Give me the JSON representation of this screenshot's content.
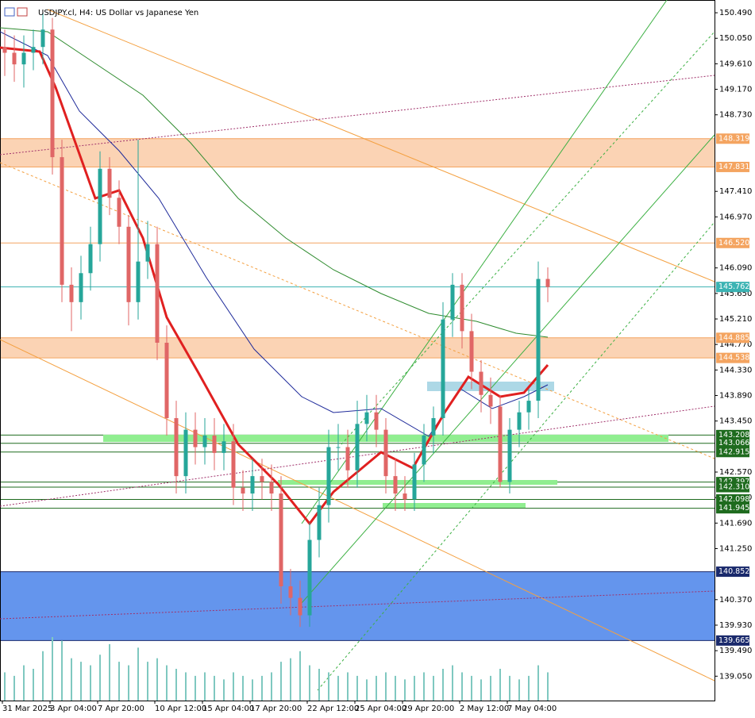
{
  "chart_data": {
    "type": "candlestick",
    "title": "USDJPY.cl, H4:  US Dollar vs Japanese Yen",
    "ylim": [
      138.63,
      150.71
    ],
    "yticks": [
      {
        "value": 150.49,
        "label": "150.490"
      },
      {
        "value": 150.05,
        "label": "150.050"
      },
      {
        "value": 149.61,
        "label": "149.610"
      },
      {
        "value": 149.17,
        "label": "149.170"
      },
      {
        "value": 148.73,
        "label": "148.730"
      },
      {
        "value": 147.41,
        "label": "147.410"
      },
      {
        "value": 146.97,
        "label": "146.970"
      },
      {
        "value": 146.09,
        "label": "146.090"
      },
      {
        "value": 145.65,
        "label": "145.650"
      },
      {
        "value": 145.21,
        "label": "145.210"
      },
      {
        "value": 144.77,
        "label": "144.770"
      },
      {
        "value": 144.33,
        "label": "144.330"
      },
      {
        "value": 143.89,
        "label": "143.890"
      },
      {
        "value": 143.45,
        "label": "143.450"
      },
      {
        "value": 142.57,
        "label": "142.570"
      },
      {
        "value": 142.13,
        "label": "142.130"
      },
      {
        "value": 141.69,
        "label": "141.690"
      },
      {
        "value": 141.25,
        "label": "141.250"
      },
      {
        "value": 140.37,
        "label": "140.370"
      },
      {
        "value": 139.93,
        "label": "139.930"
      },
      {
        "value": 139.49,
        "label": "139.490"
      },
      {
        "value": 139.05,
        "label": "139.050"
      }
    ],
    "categories": [
      "31 Mar 2025",
      null,
      null,
      null,
      null,
      "3 Apr 04:00",
      null,
      null,
      null,
      null,
      "7 Apr 20:00",
      null,
      null,
      null,
      null,
      null,
      "10 Apr 12:00",
      null,
      null,
      null,
      null,
      "15 Apr 04:00",
      null,
      null,
      null,
      null,
      "17 Apr 20:00",
      null,
      null,
      null,
      null,
      null,
      "22 Apr 12:00",
      null,
      null,
      null,
      null,
      "25 Apr 04:00",
      null,
      null,
      null,
      null,
      "29 Apr 20:00",
      null,
      null,
      null,
      null,
      null,
      "2 May 12:00",
      null,
      null,
      null,
      null,
      "7 May 04:00",
      null,
      null,
      null,
      null
    ],
    "open": [
      149.9,
      149.8,
      149.6,
      149.8,
      149.9,
      150.2,
      148.0,
      145.8,
      145.5,
      146.0,
      146.5,
      147.8,
      147.3,
      146.8,
      145.5,
      146.2,
      146.5,
      144.8,
      143.5,
      142.5,
      143.3,
      143.0,
      143.2,
      142.9,
      143.1,
      142.3,
      142.2,
      142.5,
      142.4,
      142.2,
      140.6,
      140.4,
      140.1,
      141.4,
      142.0,
      143.0,
      143.0,
      142.6,
      143.4,
      143.6,
      143.3,
      142.5,
      142.2,
      142.1,
      142.7,
      143.2,
      143.5,
      145.2,
      145.8,
      145.0,
      144.3,
      143.9,
      143.7,
      142.4,
      143.3,
      143.6,
      143.8,
      145.9
    ],
    "high": [
      150.2,
      150.1,
      150.1,
      150.2,
      150.5,
      150.4,
      148.3,
      146.1,
      146.3,
      146.8,
      148.1,
      148.0,
      147.6,
      147.0,
      148.3,
      146.9,
      146.8,
      145.1,
      143.8,
      143.6,
      143.6,
      143.5,
      143.5,
      143.4,
      143.4,
      142.6,
      142.8,
      142.8,
      142.7,
      142.5,
      140.9,
      140.7,
      141.7,
      142.3,
      143.3,
      143.4,
      143.3,
      143.8,
      143.9,
      143.9,
      143.5,
      142.8,
      142.5,
      142.9,
      143.4,
      143.7,
      145.5,
      146.0,
      146.0,
      145.3,
      144.5,
      144.2,
      143.9,
      143.5,
      143.8,
      144.0,
      146.2,
      146.1
    ],
    "low": [
      149.4,
      149.3,
      149.2,
      149.5,
      149.6,
      147.7,
      145.5,
      145.0,
      145.2,
      145.7,
      146.2,
      147.0,
      146.5,
      145.1,
      145.2,
      145.9,
      144.5,
      143.2,
      142.2,
      142.2,
      142.7,
      142.7,
      142.6,
      142.6,
      142.0,
      141.9,
      141.9,
      142.1,
      141.9,
      140.3,
      140.1,
      139.9,
      139.9,
      141.1,
      141.7,
      142.6,
      142.3,
      142.3,
      143.1,
      143.0,
      142.2,
      141.9,
      141.9,
      141.9,
      142.4,
      142.9,
      143.2,
      144.9,
      144.7,
      144.0,
      143.6,
      143.4,
      142.3,
      142.2,
      143.0,
      143.3,
      143.5,
      145.5
    ],
    "close": [
      149.8,
      149.6,
      149.8,
      149.9,
      150.2,
      148.0,
      145.8,
      145.5,
      146.0,
      146.5,
      147.8,
      147.3,
      146.8,
      145.5,
      146.2,
      146.5,
      144.8,
      143.5,
      142.5,
      143.3,
      143.0,
      143.2,
      142.9,
      143.1,
      142.3,
      142.2,
      142.5,
      142.4,
      142.2,
      140.6,
      140.4,
      140.1,
      141.4,
      142.0,
      143.0,
      143.0,
      142.6,
      143.4,
      143.6,
      143.3,
      142.5,
      142.2,
      142.1,
      142.7,
      143.2,
      143.5,
      145.2,
      145.8,
      145.0,
      144.3,
      143.9,
      143.7,
      142.4,
      143.3,
      143.6,
      143.8,
      145.9,
      145.76
    ],
    "volume": [
      40,
      35,
      50,
      45,
      70,
      90,
      85,
      60,
      55,
      50,
      65,
      80,
      55,
      50,
      75,
      55,
      60,
      50,
      45,
      40,
      35,
      40,
      35,
      30,
      40,
      35,
      30,
      35,
      40,
      55,
      60,
      70,
      50,
      45,
      40,
      35,
      40,
      35,
      30,
      35,
      40,
      35,
      30,
      35,
      40,
      35,
      45,
      50,
      40,
      35,
      30,
      35,
      45,
      35,
      30,
      35,
      50,
      40
    ],
    "up_color": "#26a69a",
    "down_color": "#e06666",
    "zones": [
      {
        "from": 148.319,
        "to": 147.831,
        "color": "#fbd3b4"
      },
      {
        "from": 144.885,
        "to": 144.538,
        "color": "#fbd3b4"
      },
      {
        "from": 140.852,
        "to": 139.665,
        "color": "#6495ed"
      }
    ],
    "levels": [
      {
        "value": 148.319,
        "label": "148.319",
        "color": "#f4a460"
      },
      {
        "value": 147.831,
        "label": "147.831",
        "color": "#f4a460"
      },
      {
        "value": 146.52,
        "label": "146.520",
        "color": "#f4a460"
      },
      {
        "value": 145.762,
        "label": "145.762",
        "color": "#3bb3b3"
      },
      {
        "value": 144.885,
        "label": "144.885",
        "color": "#f4a460"
      },
      {
        "value": 144.538,
        "label": "144.538",
        "color": "#f4a460"
      },
      {
        "value": 143.208,
        "label": "143.208",
        "color": "#1e6b1e"
      },
      {
        "value": 143.066,
        "label": "143.066",
        "color": "#1e6b1e"
      },
      {
        "value": 142.915,
        "label": "142.915",
        "color": "#1e6b1e"
      },
      {
        "value": 142.397,
        "label": "142.397",
        "color": "#1e6b1e"
      },
      {
        "value": 142.31,
        "label": "142.310",
        "color": "#1e6b1e"
      },
      {
        "value": 142.098,
        "label": "142.098",
        "color": "#1e6b1e"
      },
      {
        "value": 141.945,
        "label": "141.945",
        "color": "#1e6b1e"
      },
      {
        "value": 140.852,
        "label": "140.852",
        "color": "#1a2a6c"
      },
      {
        "value": 139.665,
        "label": "139.665",
        "color": "#1a2a6c"
      }
    ]
  }
}
